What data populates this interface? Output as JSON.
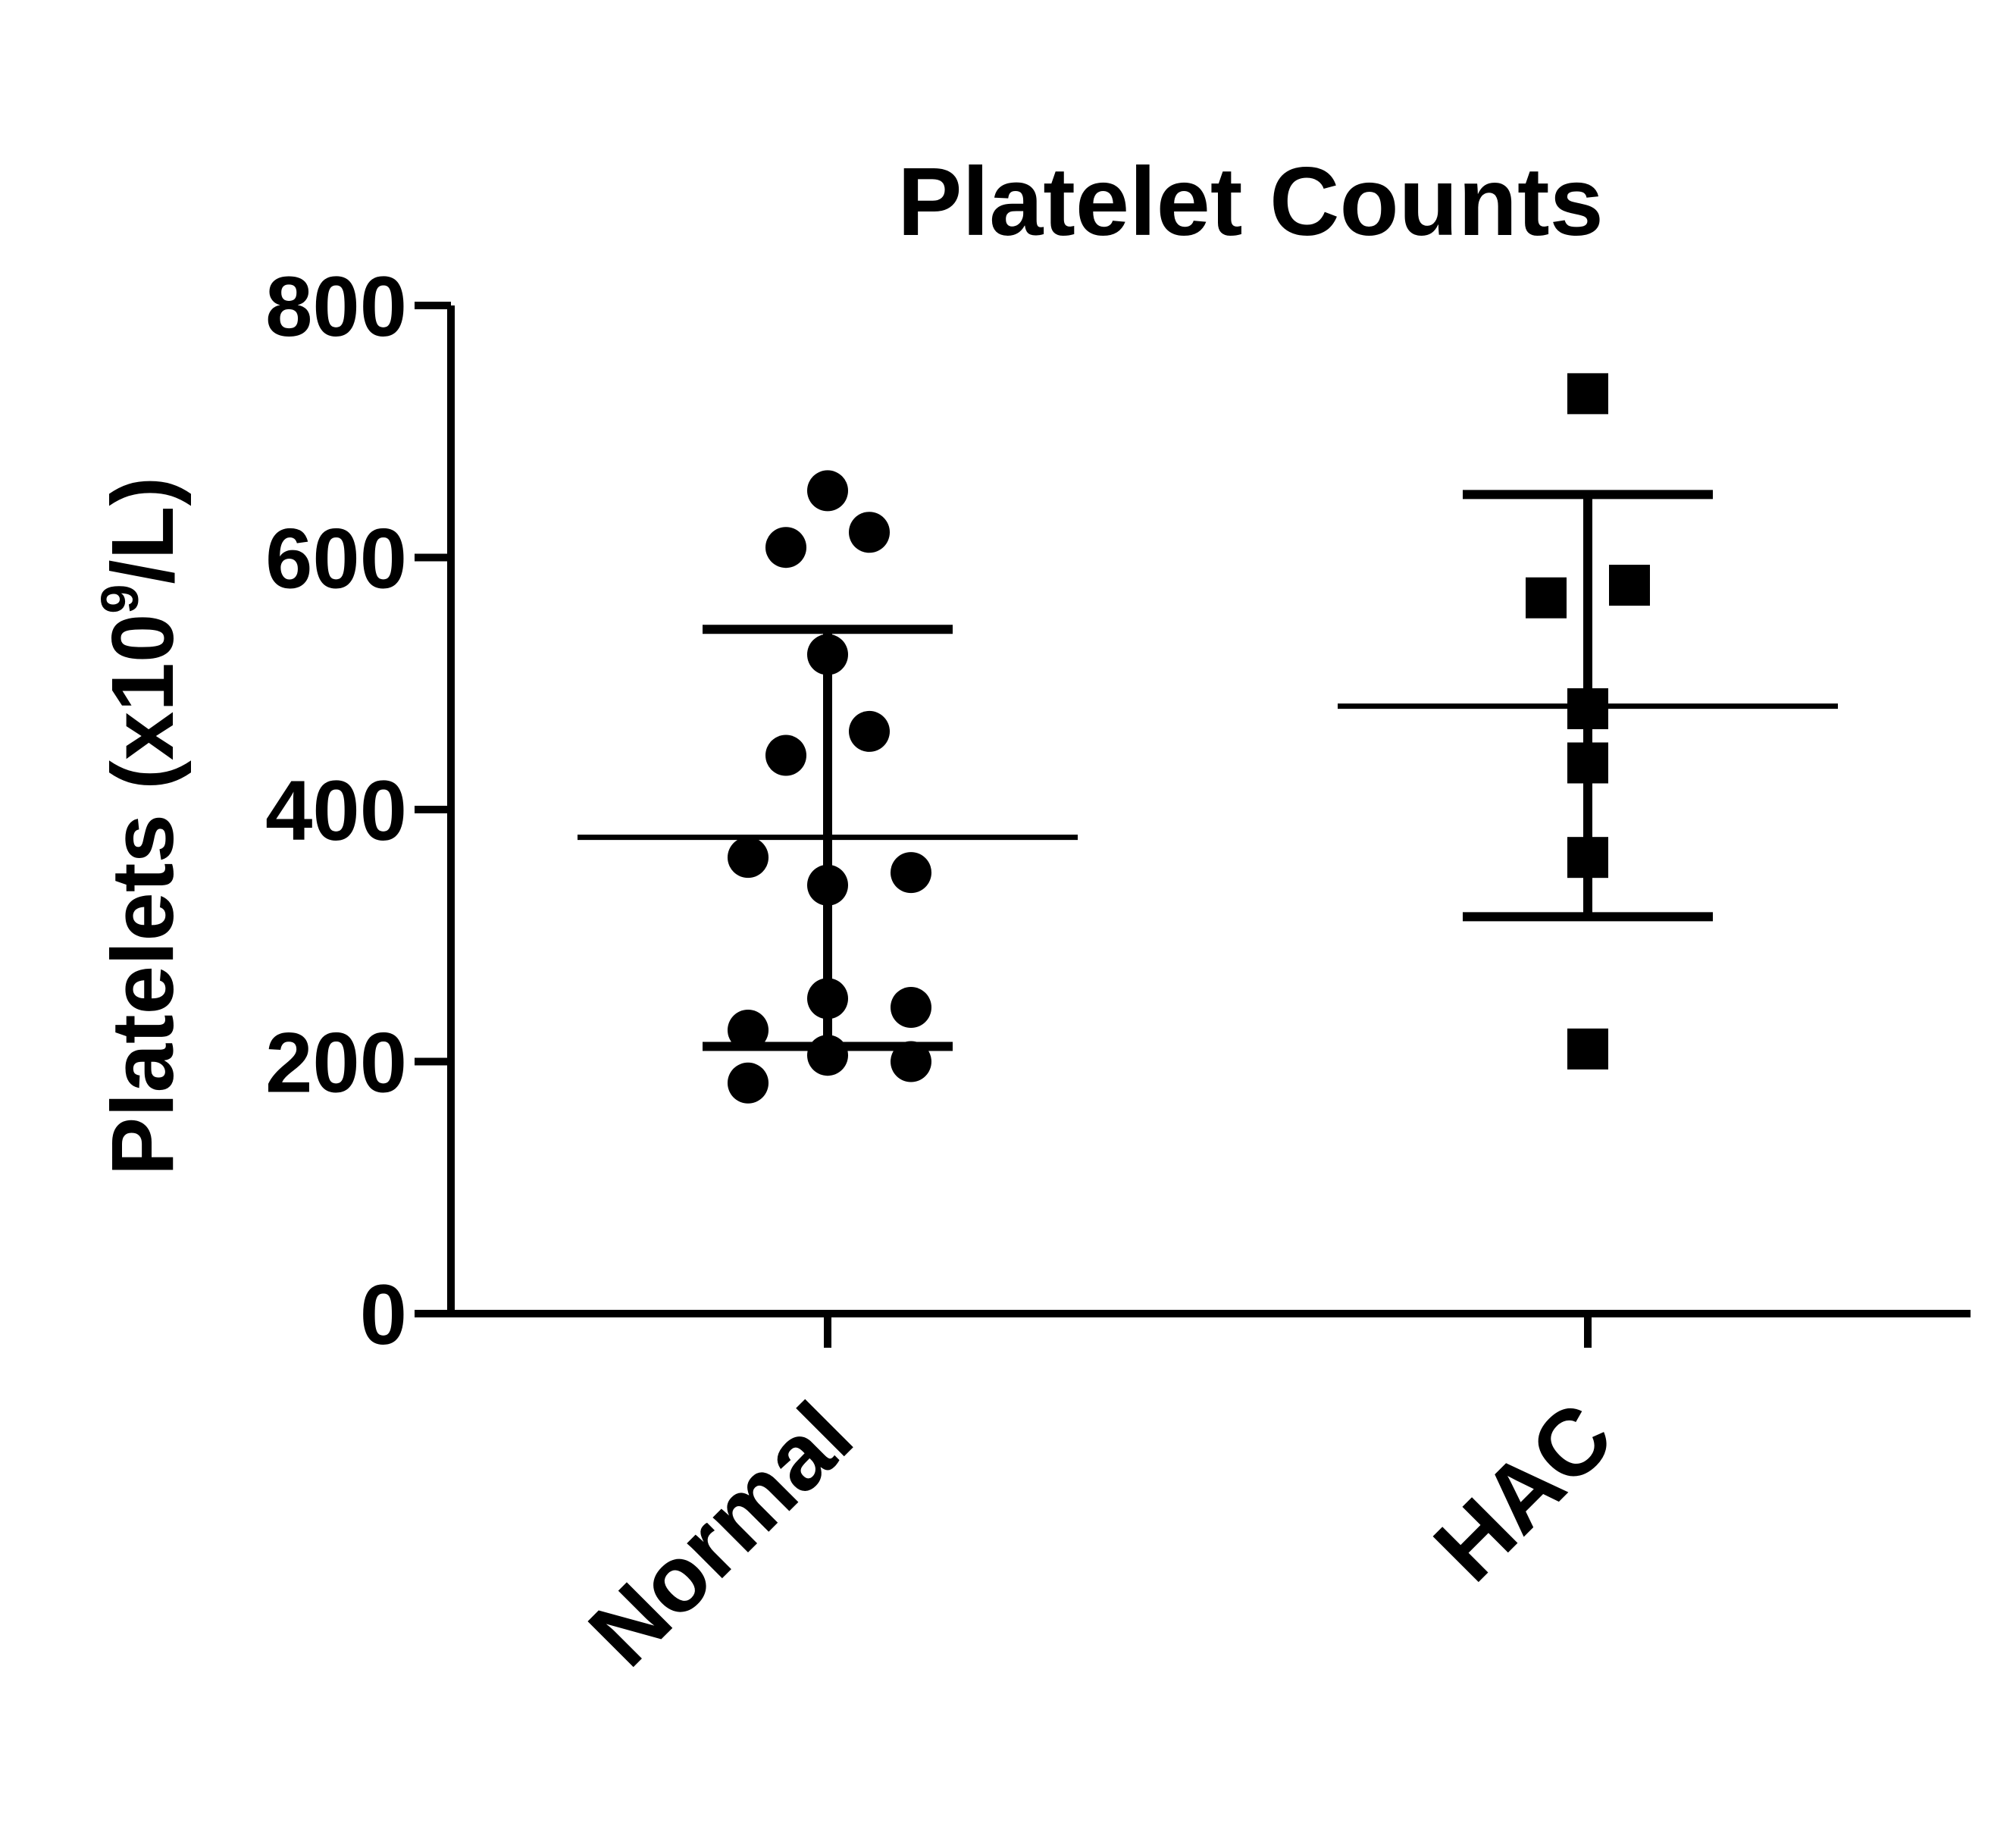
{
  "chart_data": {
    "type": "scatter",
    "title": "Platelet Counts",
    "ylabel": "Platelets (x10",
    "ylabel_sup": "9",
    "ylabel_suffix": "/L)",
    "xlabel": "",
    "ylim": [
      0,
      800
    ],
    "yticks": [
      0,
      200,
      400,
      600,
      800
    ],
    "grid": false,
    "categories": [
      "Normal",
      "HAC"
    ],
    "series": [
      {
        "category": "Normal",
        "marker": "circle",
        "values": [
          653,
          620,
          608,
          523,
          462,
          443,
          362,
          350,
          340,
          250,
          243,
          225,
          205,
          200,
          183
        ],
        "mean": 378,
        "sd_upper": 543,
        "sd_lower": 212
      },
      {
        "category": "HAC",
        "marker": "square",
        "values": [
          730,
          578,
          568,
          480,
          437,
          362,
          210
        ],
        "mean": 482,
        "sd_upper": 650,
        "sd_lower": 315
      }
    ],
    "color": "#000000"
  }
}
